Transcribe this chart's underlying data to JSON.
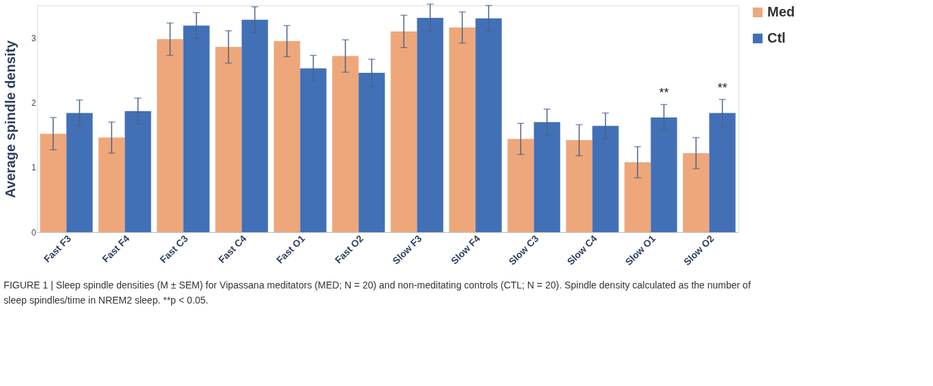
{
  "chart_data": {
    "type": "bar",
    "ylabel": "Average spindle density",
    "categories": [
      "Fast F3",
      "Fast F4",
      "Fast C3",
      "Fast C4",
      "Fast O1",
      "Fast O2",
      "Slow F3",
      "Slow F4",
      "Slow C3",
      "Slow C4",
      "Slow O1",
      "Slow O2"
    ],
    "series": [
      {
        "name": "Med",
        "color": "#eea77a",
        "values": [
          1.52,
          1.46,
          2.98,
          2.86,
          2.95,
          2.72,
          3.1,
          3.16,
          1.44,
          1.42,
          1.08,
          1.22
        ],
        "errors": [
          0.25,
          0.24,
          0.25,
          0.25,
          0.24,
          0.25,
          0.25,
          0.24,
          0.24,
          0.24,
          0.24,
          0.24
        ]
      },
      {
        "name": "Ctl",
        "color": "#4270b6",
        "values": [
          1.84,
          1.87,
          3.19,
          3.28,
          2.53,
          2.46,
          3.31,
          3.3,
          1.7,
          1.64,
          1.77,
          1.84
        ],
        "errors": [
          0.2,
          0.2,
          0.2,
          0.2,
          0.2,
          0.21,
          0.21,
          0.2,
          0.2,
          0.2,
          0.2,
          0.21
        ],
        "value_labels": [
          null,
          null,
          null,
          null,
          null,
          null,
          null,
          null,
          null,
          null,
          "**",
          "**"
        ]
      }
    ],
    "ylim": [
      0,
      3.5
    ],
    "yticks": [
      0,
      1,
      2,
      3
    ],
    "grid": false,
    "legend": "right",
    "annotations": [
      "FIGURE 1 | Sleep spindle densities (M ± SEM) for Vipassana meditators (MED; N = 20) and non-meditating controls (CTL; N = 20). Spindle density calculated as the number of sleep spindles/time in NREM2 sleep. **p < 0.05."
    ]
  }
}
